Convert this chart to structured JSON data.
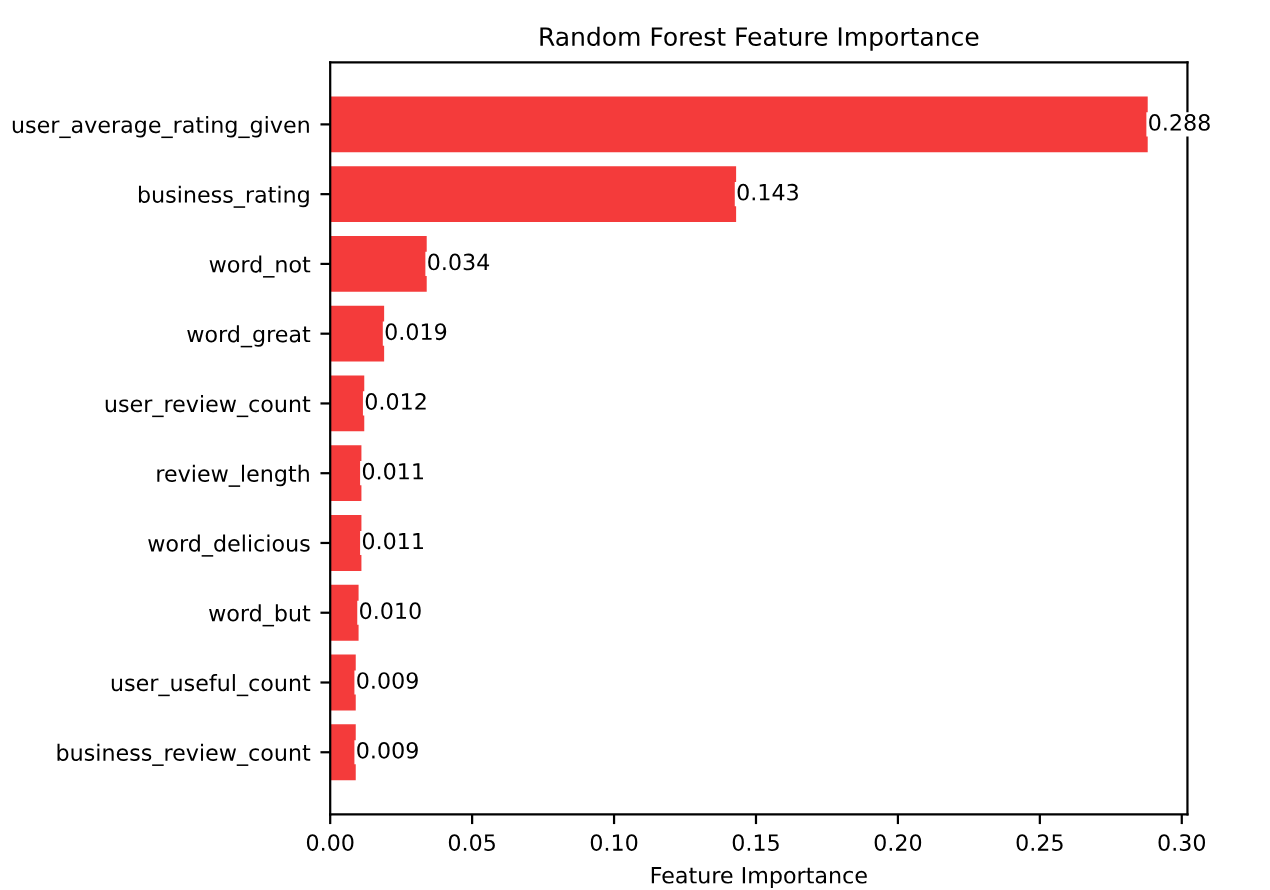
{
  "chart_data": {
    "type": "bar",
    "orientation": "horizontal",
    "title": "Random Forest Feature Importance",
    "xlabel": "Feature Importance",
    "categories": [
      "user_average_rating_given",
      "business_rating",
      "word_not",
      "word_great",
      "user_review_count",
      "review_length",
      "word_delicious",
      "word_but",
      "user_useful_count",
      "business_review_count"
    ],
    "values": [
      0.288,
      0.143,
      0.034,
      0.019,
      0.012,
      0.011,
      0.011,
      0.01,
      0.009,
      0.009
    ],
    "value_labels": [
      "0.288",
      "0.143",
      "0.034",
      "0.019",
      "0.012",
      "0.011",
      "0.011",
      "0.010",
      "0.009",
      "0.009"
    ],
    "color": "#f43b3b",
    "xlim": [
      0,
      0.302
    ],
    "xticks": [
      {
        "value": 0,
        "label": "0.00"
      },
      {
        "value": 0.05,
        "label": "0.05"
      },
      {
        "value": 0.1,
        "label": "0.10"
      },
      {
        "value": 0.15,
        "label": "0.15"
      },
      {
        "value": 0.2,
        "label": "0.20"
      },
      {
        "value": 0.25,
        "label": "0.25"
      },
      {
        "value": 0.3,
        "label": "0.30"
      }
    ],
    "grid": false,
    "legend": false
  }
}
